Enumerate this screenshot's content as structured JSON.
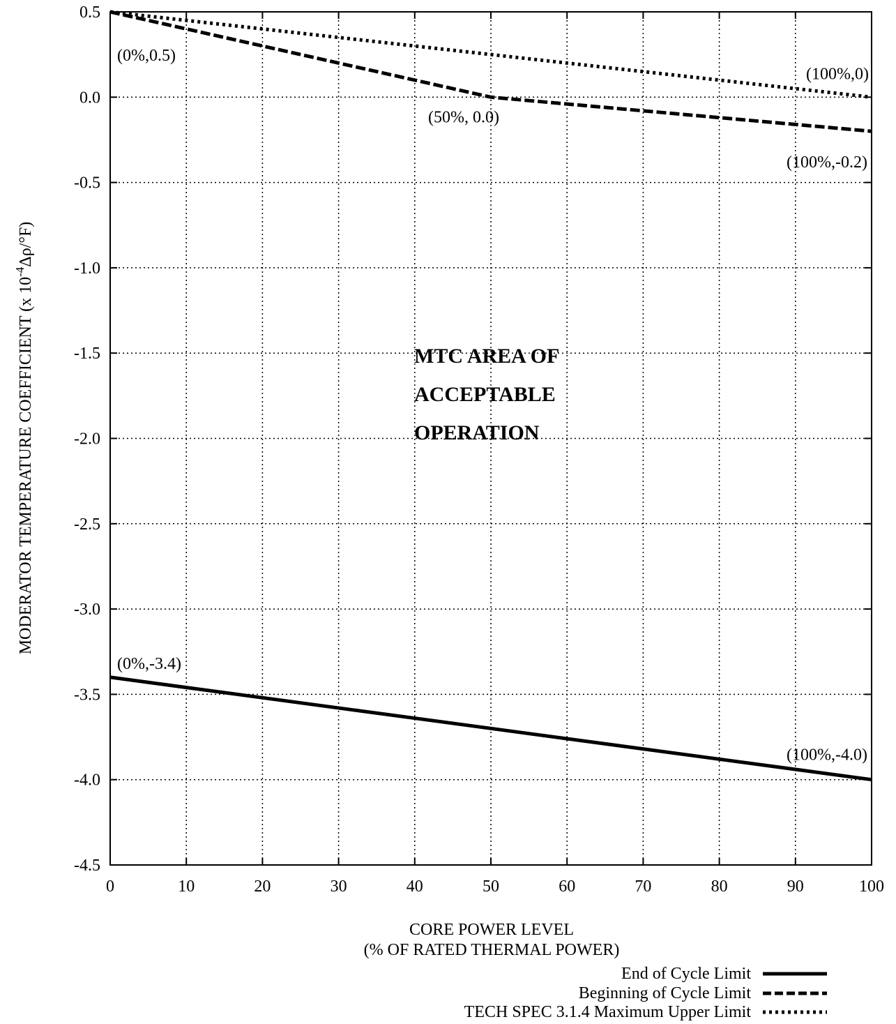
{
  "chart_data": {
    "type": "line",
    "xlabel_line1": "CORE POWER LEVEL",
    "xlabel_line2": "(% OF RATED THERMAL POWER)",
    "ylabel": "MODERATOR TEMPERATURE COEFFICIENT (x 10",
    "ylabel_exp": "-4",
    "ylabel_unit": "Δρ/°F)",
    "xlim": [
      0,
      100
    ],
    "ylim": [
      -4.5,
      0.5
    ],
    "x_ticks": [
      0,
      10,
      20,
      30,
      40,
      50,
      60,
      70,
      80,
      90,
      100
    ],
    "x_tick_labels": [
      "0",
      "10",
      "20",
      "30",
      "40",
      "50",
      "60",
      "70",
      "80",
      "90",
      "100"
    ],
    "y_ticks": [
      0.5,
      0.0,
      -0.5,
      -1.0,
      -1.5,
      -2.0,
      -2.5,
      -3.0,
      -3.5,
      -4.0,
      -4.5
    ],
    "y_tick_labels": [
      "0.5",
      "0.0",
      "-0.5",
      "-1.0",
      "-1.5",
      "-2.0",
      "-2.5",
      "-3.0",
      "-3.5",
      "-4.0",
      "-4.5"
    ],
    "grid": true,
    "legend_position": "bottom-right",
    "series": [
      {
        "name": "End of Cycle Limit",
        "style": "solid",
        "x": [
          0,
          100
        ],
        "y": [
          -3.4,
          -4.0
        ]
      },
      {
        "name": "Beginning of Cycle Limit",
        "style": "dashed",
        "x": [
          0,
          50,
          100
        ],
        "y": [
          0.5,
          0.0,
          -0.2
        ]
      },
      {
        "name": "TECH SPEC 3.1.4 Maximum Upper Limit",
        "style": "dotted",
        "x": [
          0,
          100
        ],
        "y": [
          0.5,
          0.0
        ]
      }
    ],
    "annotations": [
      {
        "text": "(0%,0.5)",
        "x": 0,
        "y": 0.5
      },
      {
        "text": "(100%,0)",
        "x": 100,
        "y": 0.0
      },
      {
        "text": "(50%, 0.0)",
        "x": 50,
        "y": 0.0
      },
      {
        "text": "(100%,-0.2)",
        "x": 100,
        "y": -0.2
      },
      {
        "text": "(0%,-3.4)",
        "x": 0,
        "y": -3.4
      },
      {
        "text": "(100%,-4.0)",
        "x": 100,
        "y": -4.0
      }
    ],
    "region_label": [
      "MTC AREA OF",
      "ACCEPTABLE",
      "OPERATION"
    ]
  }
}
